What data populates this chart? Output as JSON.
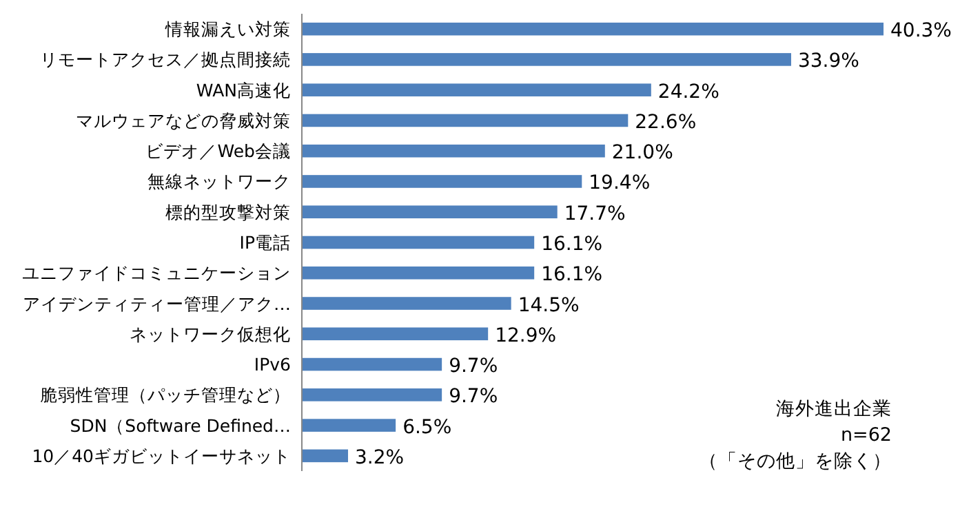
{
  "chart_data": {
    "type": "bar",
    "orientation": "horizontal",
    "categories": [
      "情報漏えい対策",
      "リモートアクセス／拠点間接続",
      "WAN高速化",
      "マルウェアなどの脅威対策",
      "ビデオ／Web会議",
      "無線ネットワーク",
      "標的型攻撃対策",
      "IP電話",
      "ユニファイドコミュニケーション",
      "アイデンティティー管理／アク…",
      "ネットワーク仮想化",
      "IPv6",
      "脆弱性管理（パッチ管理など）",
      "SDN（Software Defined…",
      "10／40ギガビットイーサネット"
    ],
    "values": [
      40.3,
      33.9,
      24.2,
      22.6,
      21.0,
      19.4,
      17.7,
      16.1,
      16.1,
      14.5,
      12.9,
      9.7,
      9.7,
      6.5,
      3.2
    ],
    "value_labels": [
      "40.3%",
      "33.9%",
      "24.2%",
      "22.6%",
      "21.0%",
      "19.4%",
      "17.7%",
      "16.1%",
      "16.1%",
      "14.5%",
      "12.9%",
      "9.7%",
      "9.7%",
      "6.5%",
      "3.2%"
    ],
    "color": "#4f81bd",
    "annotations": [
      "海外進出企業",
      "n=62",
      "（「その他」を除く）"
    ]
  }
}
